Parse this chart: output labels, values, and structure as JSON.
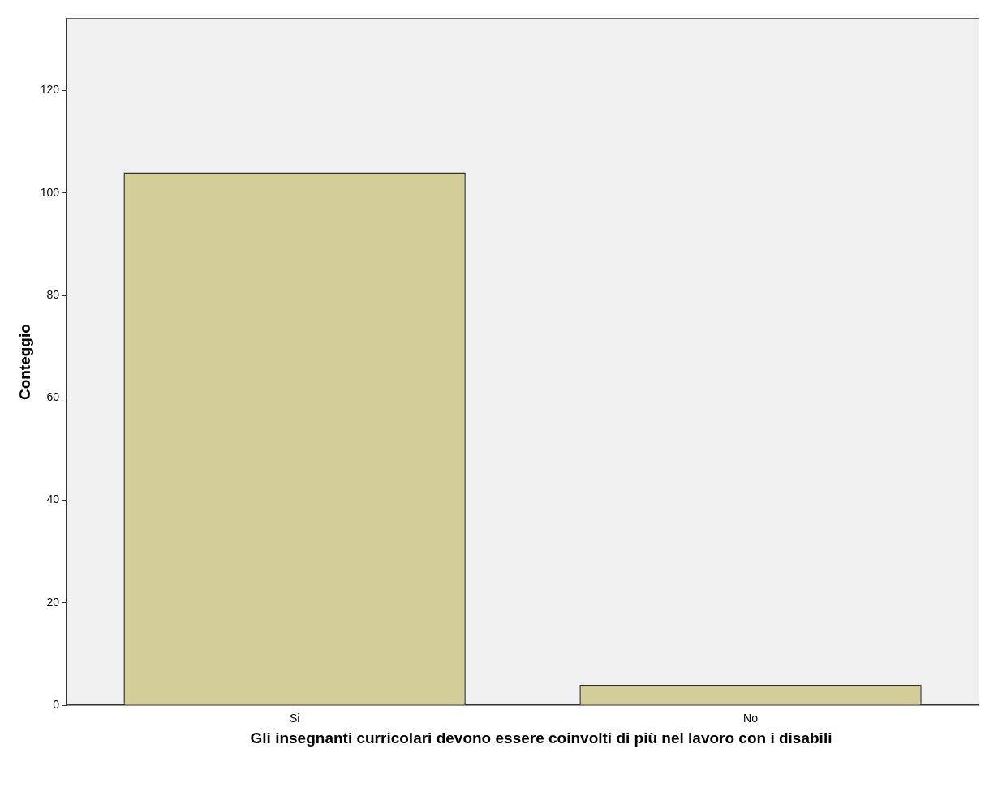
{
  "chart_data": {
    "type": "bar",
    "xlabel": "Gli insegnanti curricolari devono essere coinvolti di più nel lavoro con i disabili",
    "ylabel": "Conteggio",
    "categories": [
      "Si",
      "No"
    ],
    "values": [
      104,
      4
    ],
    "color": "#d3ce97",
    "ylim": [
      0,
      134
    ],
    "yticks": [
      0,
      20,
      40,
      60,
      80,
      100,
      120
    ],
    "grid": false,
    "legend": false
  }
}
